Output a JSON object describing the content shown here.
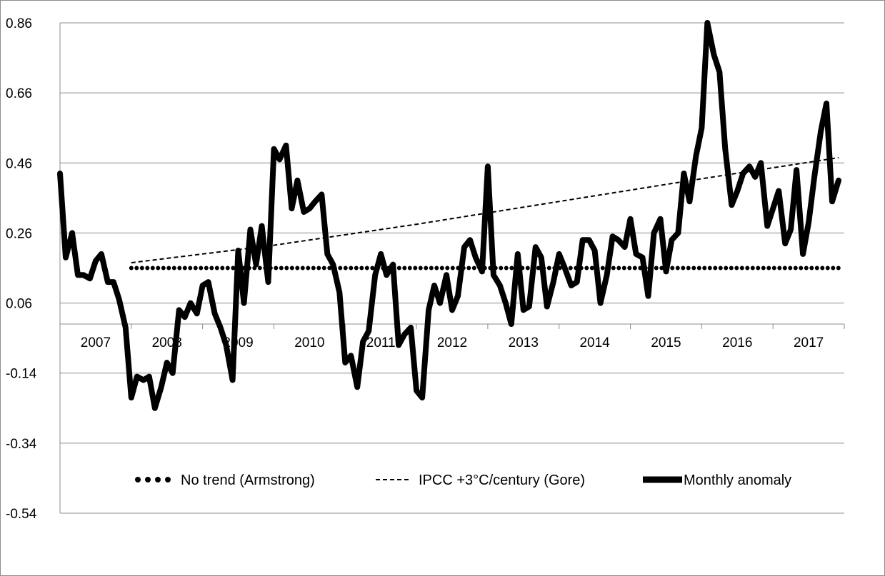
{
  "chart_data": {
    "type": "line",
    "title": "",
    "xlabel": "",
    "ylabel": "",
    "ylim": [
      -0.54,
      0.86
    ],
    "yticks": [
      "0.86",
      "0.66",
      "0.46",
      "0.26",
      "0.06",
      "-0.14",
      "-0.34",
      "-0.54"
    ],
    "ytick_values": [
      0.86,
      0.66,
      0.46,
      0.26,
      0.06,
      -0.14,
      -0.34,
      -0.54
    ],
    "x_axis_at": -0.0,
    "xlim": [
      2007.0,
      2018.0
    ],
    "xticks": [
      "2007",
      "2008",
      "2009",
      "2010",
      "2011",
      "2012",
      "2013",
      "2014",
      "2015",
      "2016",
      "2017"
    ],
    "grid": "horizontal",
    "legend_position": "bottom",
    "series": [
      {
        "name": "No trend (Armstrong)",
        "style": "dotted",
        "x": [
          2008.0,
          2017.92
        ],
        "values": [
          0.16,
          0.16
        ]
      },
      {
        "name": "IPCC +3°C/century (Gore)",
        "style": "dashed",
        "x": [
          2008.0,
          2010.0,
          2012.0,
          2014.0,
          2016.0,
          2017.92
        ],
        "values": [
          0.175,
          0.225,
          0.285,
          0.35,
          0.415,
          0.475
        ]
      },
      {
        "name": "Monthly anomaly",
        "style": "thick",
        "x": [
          2007.0,
          2007.08,
          2007.17,
          2007.25,
          2007.33,
          2007.42,
          2007.5,
          2007.58,
          2007.67,
          2007.75,
          2007.83,
          2007.92,
          2008.0,
          2008.08,
          2008.17,
          2008.25,
          2008.33,
          2008.42,
          2008.5,
          2008.58,
          2008.67,
          2008.75,
          2008.83,
          2008.92,
          2009.0,
          2009.08,
          2009.17,
          2009.25,
          2009.33,
          2009.42,
          2009.5,
          2009.58,
          2009.67,
          2009.75,
          2009.83,
          2009.92,
          2010.0,
          2010.08,
          2010.17,
          2010.25,
          2010.33,
          2010.42,
          2010.5,
          2010.58,
          2010.67,
          2010.75,
          2010.83,
          2010.92,
          2011.0,
          2011.08,
          2011.17,
          2011.25,
          2011.33,
          2011.42,
          2011.5,
          2011.58,
          2011.67,
          2011.75,
          2011.83,
          2011.92,
          2012.0,
          2012.08,
          2012.17,
          2012.25,
          2012.33,
          2012.42,
          2012.5,
          2012.58,
          2012.67,
          2012.75,
          2012.83,
          2012.92,
          2013.0,
          2013.08,
          2013.17,
          2013.25,
          2013.33,
          2013.42,
          2013.5,
          2013.58,
          2013.67,
          2013.75,
          2013.83,
          2013.92,
          2014.0,
          2014.08,
          2014.17,
          2014.25,
          2014.33,
          2014.42,
          2014.5,
          2014.58,
          2014.67,
          2014.75,
          2014.83,
          2014.92,
          2015.0,
          2015.08,
          2015.17,
          2015.25,
          2015.33,
          2015.42,
          2015.5,
          2015.58,
          2015.67,
          2015.75,
          2015.83,
          2015.92,
          2016.0,
          2016.08,
          2016.17,
          2016.25,
          2016.33,
          2016.42,
          2016.5,
          2016.58,
          2016.67,
          2016.75,
          2016.83,
          2016.92,
          2017.0,
          2017.08,
          2017.17,
          2017.25,
          2017.33,
          2017.42,
          2017.5,
          2017.58,
          2017.67,
          2017.75,
          2017.83,
          2017.92
        ],
        "values": [
          0.43,
          0.19,
          0.26,
          0.14,
          0.14,
          0.13,
          0.18,
          0.2,
          0.12,
          0.12,
          0.07,
          -0.01,
          -0.21,
          -0.15,
          -0.16,
          -0.15,
          -0.24,
          -0.18,
          -0.11,
          -0.14,
          0.04,
          0.02,
          0.06,
          0.03,
          0.11,
          0.12,
          0.03,
          -0.01,
          -0.06,
          -0.16,
          0.21,
          0.06,
          0.27,
          0.17,
          0.28,
          0.12,
          0.5,
          0.47,
          0.51,
          0.33,
          0.41,
          0.32,
          0.33,
          0.35,
          0.37,
          0.2,
          0.17,
          0.09,
          -0.11,
          -0.09,
          -0.18,
          -0.05,
          -0.02,
          0.14,
          0.2,
          0.14,
          0.17,
          -0.06,
          -0.03,
          -0.01,
          -0.19,
          -0.21,
          0.04,
          0.11,
          0.06,
          0.14,
          0.04,
          0.08,
          0.22,
          0.24,
          0.19,
          0.15,
          0.45,
          0.14,
          0.11,
          0.06,
          0.0,
          0.2,
          0.04,
          0.05,
          0.22,
          0.19,
          0.05,
          0.12,
          0.2,
          0.16,
          0.11,
          0.12,
          0.24,
          0.24,
          0.21,
          0.06,
          0.14,
          0.25,
          0.24,
          0.22,
          0.3,
          0.2,
          0.19,
          0.08,
          0.26,
          0.3,
          0.15,
          0.24,
          0.26,
          0.43,
          0.35,
          0.48,
          0.56,
          0.86,
          0.77,
          0.72,
          0.5,
          0.34,
          0.38,
          0.43,
          0.45,
          0.42,
          0.46,
          0.28,
          0.33,
          0.38,
          0.23,
          0.27,
          0.44,
          0.2,
          0.29,
          0.42,
          0.55,
          0.63,
          0.35,
          0.41
        ]
      }
    ]
  },
  "legend": {
    "items": [
      {
        "label": "No trend (Armstrong)",
        "style": "dotted"
      },
      {
        "label": "IPCC +3°C/century (Gore)",
        "style": "dashed"
      },
      {
        "label": "Monthly anomaly",
        "style": "thick"
      }
    ]
  },
  "colors": {
    "line": "#000000",
    "grid": "#8c8c8c",
    "background": "#ffffff"
  }
}
